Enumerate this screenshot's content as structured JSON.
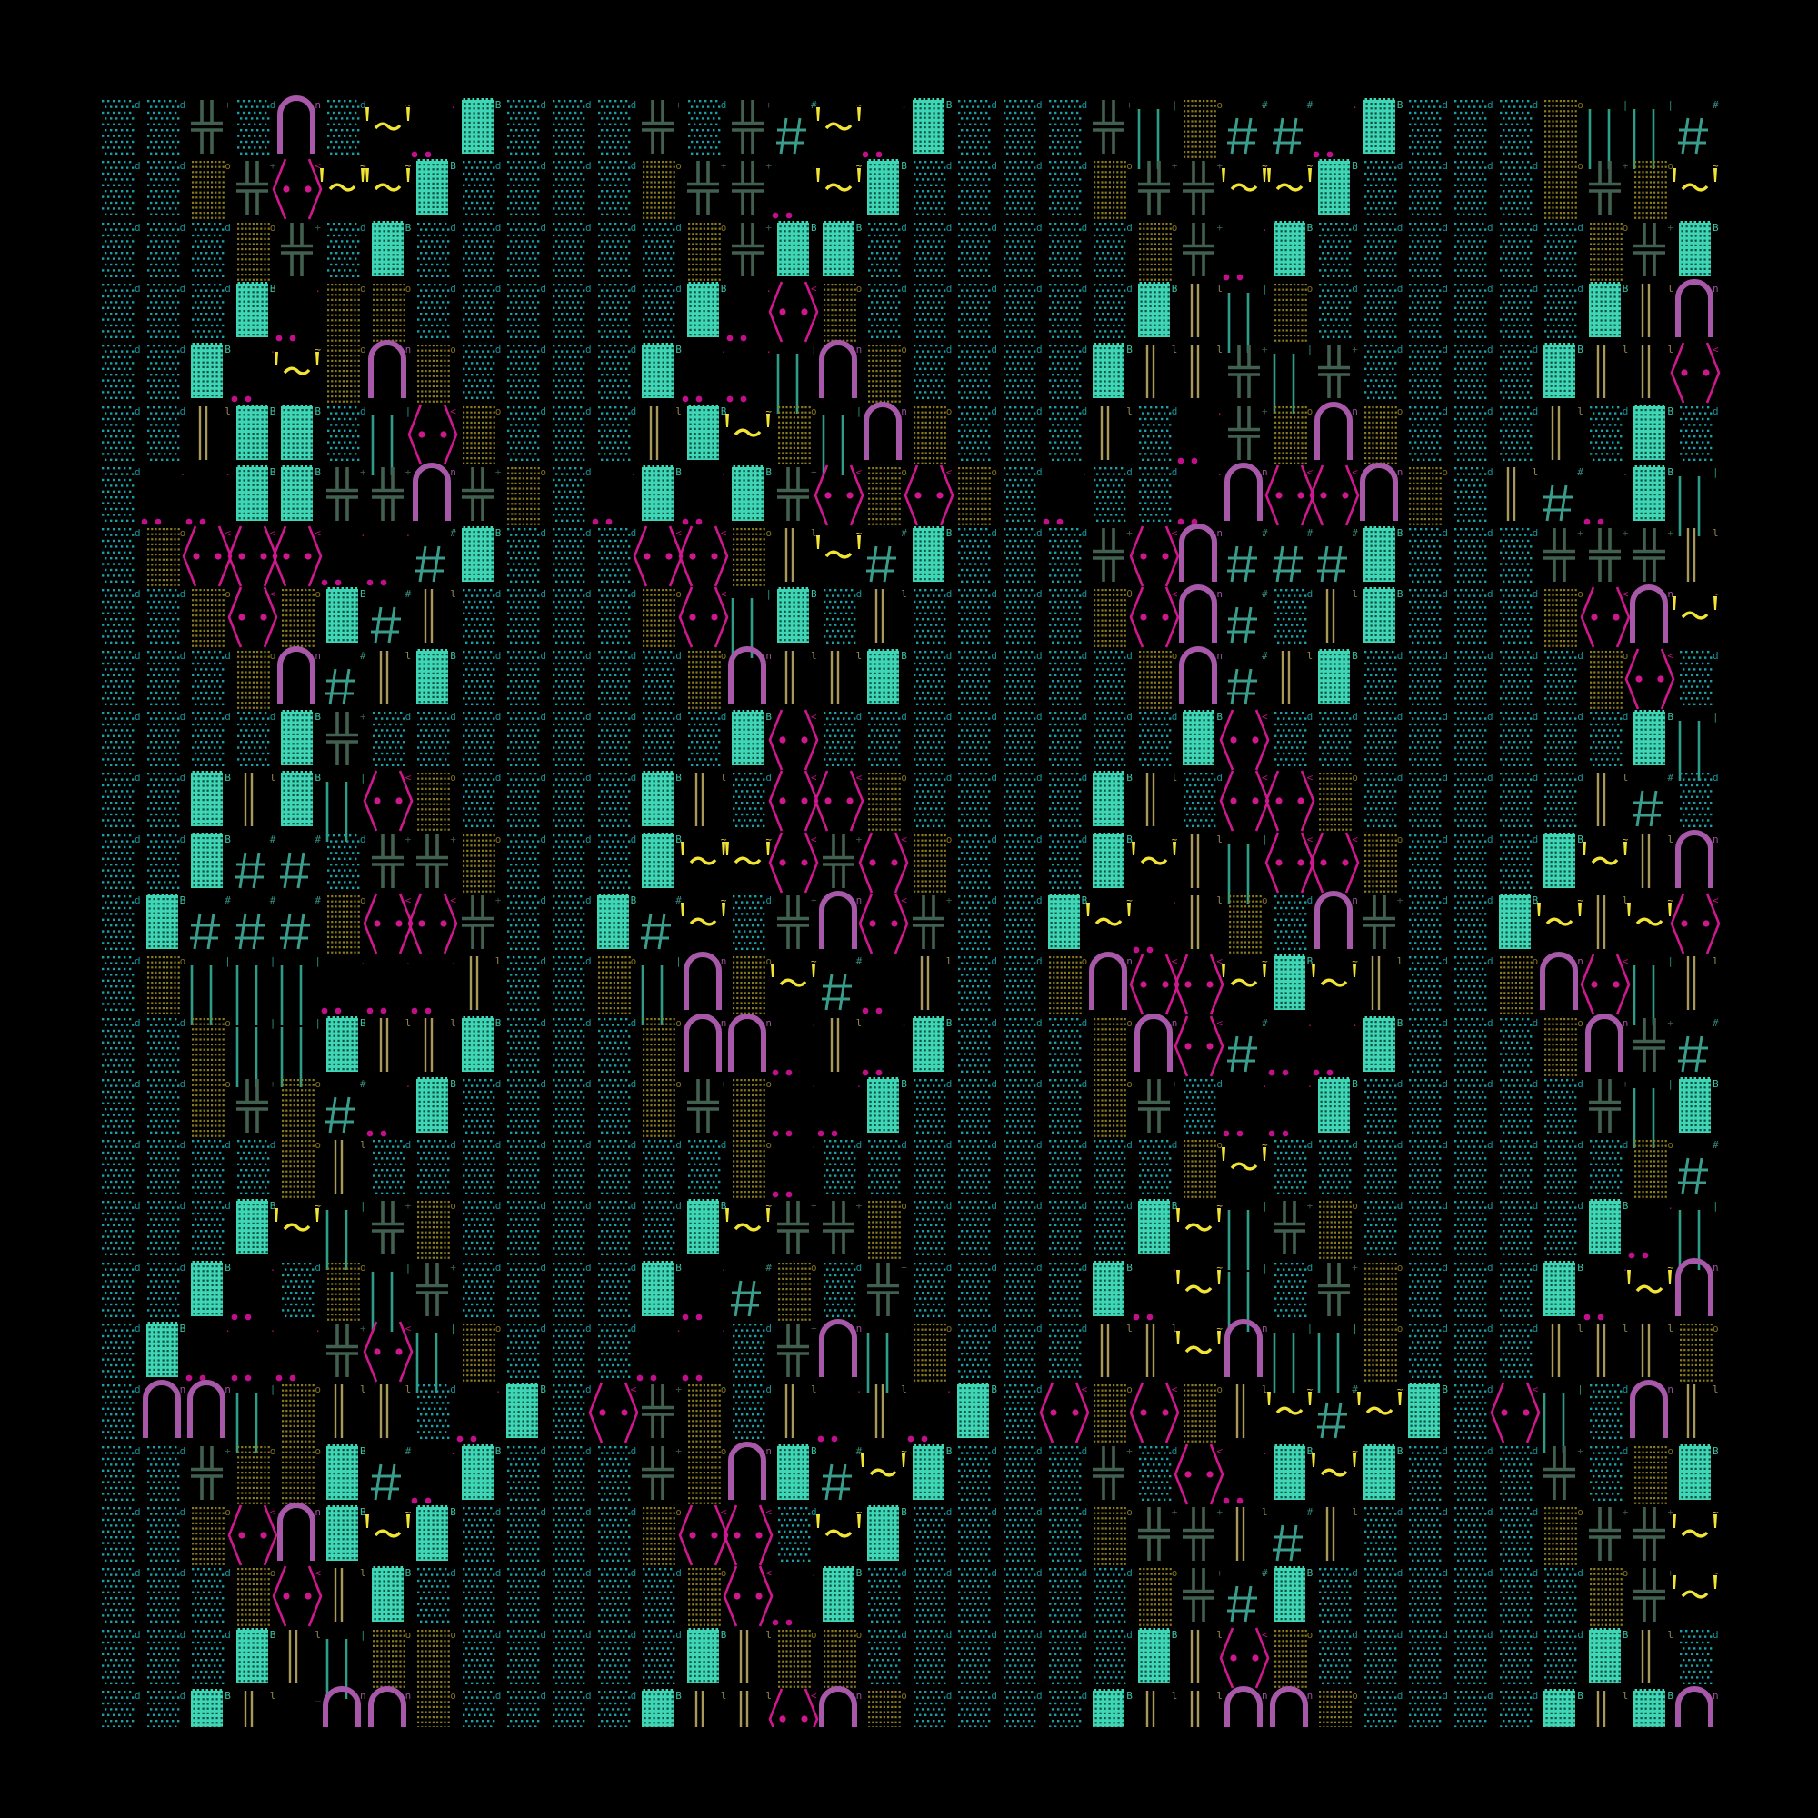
{
  "background": "#000000",
  "tiles": {
    "d": {
      "name": "teal-dot-tile",
      "color": "#1aa0a6"
    },
    "o": {
      "name": "olive-dot-tile",
      "color": "#8c7c20"
    },
    "B": {
      "name": "bright-block-tile",
      "color": "#3fd6b6"
    },
    "+": {
      "name": "double-cross-glyph",
      "color": "#41604f"
    },
    "n": {
      "name": "arch-glyph",
      "color": "#a858a8"
    },
    "<": {
      "name": "angle-bracket-eyes-glyph",
      "color": "#d0188e"
    },
    "~": {
      "name": "tilde-face-glyph",
      "color": "#f2e436"
    },
    ".": {
      "name": "ellipsis-dots-glyph",
      "color": "#c0108a"
    },
    "|": {
      "name": "teal-double-bar-glyph",
      "color": "#2f9c88"
    },
    "l": {
      "name": "olive-double-bar-glyph",
      "color": "#a8995a"
    },
    "#": {
      "name": "hash-glyph",
      "color": "#3a9c8a"
    },
    "_": {
      "name": "empty-cell",
      "color": "#000000"
    }
  },
  "grid": {
    "rows": [
      "dd+dnd~.Bddd+d+#~.Bddd+|o##.Bdddo||#",
      "ddo+<~~Bddddo++.~Bddddo++~~Bddddo+o~",
      "dddo+dBddddddo+BBddddddo+.Bddddddo+B",
      "dddB.ooddddddB.<oddddddBl|oddddddBln",
      "ddB.~onoddddB..|noddddBll+|+ddddBll<",
      "ddlBBd|<odddlB~o|nodddld.+onodddldBd",
      "d..BB++n+od.B.B+<o<od.dd.n<<nodl#.B|",
      "do<<<..#Bddd<<ol~#Bddd+<n###Bddd+++l",
      "ddo<oB#lddddo<|BdlddddO<n#dlBdddo<n~",
      "dddon#lBdddddonllBdddddon#lBdddddo<d",
      "ddddB+ddddddddB<ddddddddB<ddddddddB|",
      "ddBlB|<oddddBld<<oddddBld<<odddddl#d",
      "ddB##d++odddB~~<+<odddB~l|<<odddB~ln",
      "dB###o<<+ddB#~d+n<+ddB~.lodn+ddB~l~<",
      "do|||...lddo|no~#.lddon<<~B~lddon<|l",
      "ddo||BllBdddonn.l.Bdddon<#..Bdddon+#",
      "ddo+o#.Bddddo+o..Bddddo+d..Bddddd+|B",
      "ddddolddddddddo.ddddddddo~ddddddddo#",
      "dddB~|+odddddB~++odddddB~|+odddddB.|",
      "ddB.do|+ddddB.#od+ddddB.~|d+odddB.~n",
      "dB...+<|oddd..d+n|odddll~n||odddlllo",
      "dnn|olld.Bd<+odl.l.Bd<o<ol~#~Bd<|dnl",
      "dd+ooB#.Bddd+onB#~Bddd+d<.B~Bddd+doB",
      "ddo<nB~Bddddo<<d~Bddddo++l#lddddo++~",
      "dddo<lBddddddo<.Bddddddo+#Bddddddo+~",
      "dddBl|oodddddBlooddddddBl<oddddddBld",
      "ddBl_nnoddddBll<noddddBllnnoddddBlBn"
    ]
  }
}
